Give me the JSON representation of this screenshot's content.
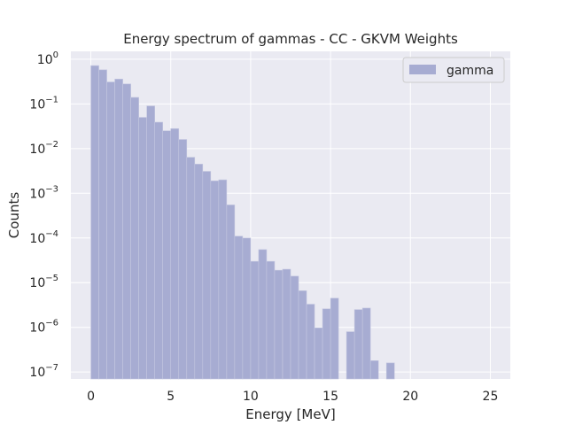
{
  "chart_data": {
    "type": "bar",
    "title": "Energy spectrum of gammas - CC - GKVM Weights",
    "xlabel": "Energy [MeV]",
    "ylabel": "Counts",
    "x_scale": "linear",
    "y_scale": "log",
    "xlim": [
      -1.25,
      26.25
    ],
    "ylim": [
      7e-08,
      1.5
    ],
    "x_ticks": [
      0,
      5,
      10,
      15,
      20,
      25
    ],
    "x_tick_labels": [
      "0",
      "5",
      "10",
      "15",
      "20",
      "25"
    ],
    "y_tick_exponents": [
      0,
      -1,
      -2,
      -3,
      -4,
      -5,
      -6,
      -7
    ],
    "y_tick_base": "10",
    "grid": true,
    "legend_position": "top-right",
    "bin_width": 0.5,
    "series": [
      {
        "name": "gamma",
        "color": "#a7acd2",
        "bin_start": [
          0,
          0.5,
          1,
          1.5,
          2,
          2.5,
          3,
          3.5,
          4,
          4.5,
          5,
          5.5,
          6,
          6.5,
          7,
          7.5,
          8,
          8.5,
          9,
          9.5,
          10,
          10.5,
          11,
          11.5,
          12,
          12.5,
          13,
          13.5,
          14,
          14.5,
          15,
          15.5,
          16,
          16.5,
          17,
          17.5,
          18,
          18.5
        ],
        "values": [
          0.72,
          0.58,
          0.31,
          0.36,
          0.28,
          0.14,
          0.05,
          0.09,
          0.039,
          0.025,
          0.028,
          0.016,
          0.0064,
          0.0045,
          0.0031,
          0.0019,
          0.002,
          0.00055,
          0.00011,
          0.0001,
          3e-05,
          5.5e-05,
          3e-05,
          1.9e-05,
          2e-05,
          1.4e-05,
          6.6e-06,
          3.3e-06,
          9.8e-07,
          2.6e-06,
          4.5e-06,
          0,
          8e-07,
          2.5e-06,
          2.7e-06,
          1.8e-07,
          0,
          1.6e-07
        ]
      }
    ]
  }
}
